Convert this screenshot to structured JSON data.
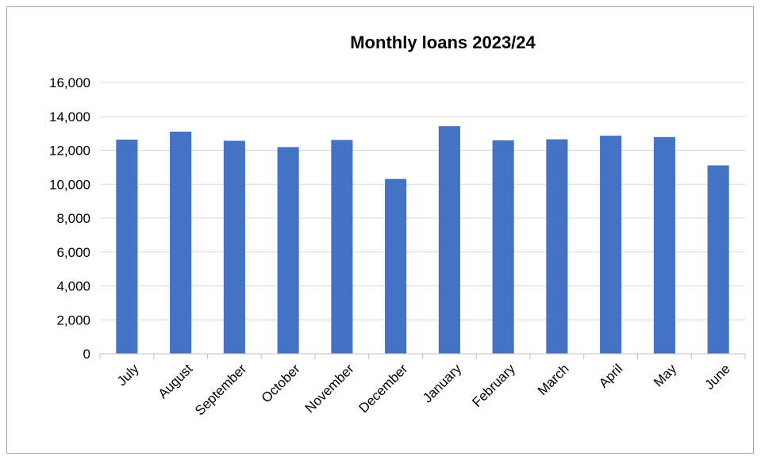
{
  "chart_data": {
    "type": "bar",
    "title": "Monthly loans 2023/24",
    "xlabel": "",
    "ylabel": "",
    "categories": [
      "July",
      "August",
      "September",
      "October",
      "November",
      "December",
      "January",
      "February",
      "March",
      "April",
      "May",
      "June"
    ],
    "values": [
      12630,
      13100,
      12560,
      12190,
      12610,
      10310,
      13420,
      12590,
      12650,
      12860,
      12780,
      11110
    ],
    "ylim": [
      0,
      16000
    ],
    "yticks": [
      0,
      2000,
      4000,
      6000,
      8000,
      10000,
      12000,
      14000,
      16000
    ],
    "ytick_labels": [
      "0",
      "2,000",
      "4,000",
      "6,000",
      "8,000",
      "10,000",
      "12,000",
      "14,000",
      "16,000"
    ],
    "grid": true,
    "legend": "none",
    "bar_color": "#4472C4",
    "gridline_color": "#d9d9d9"
  }
}
